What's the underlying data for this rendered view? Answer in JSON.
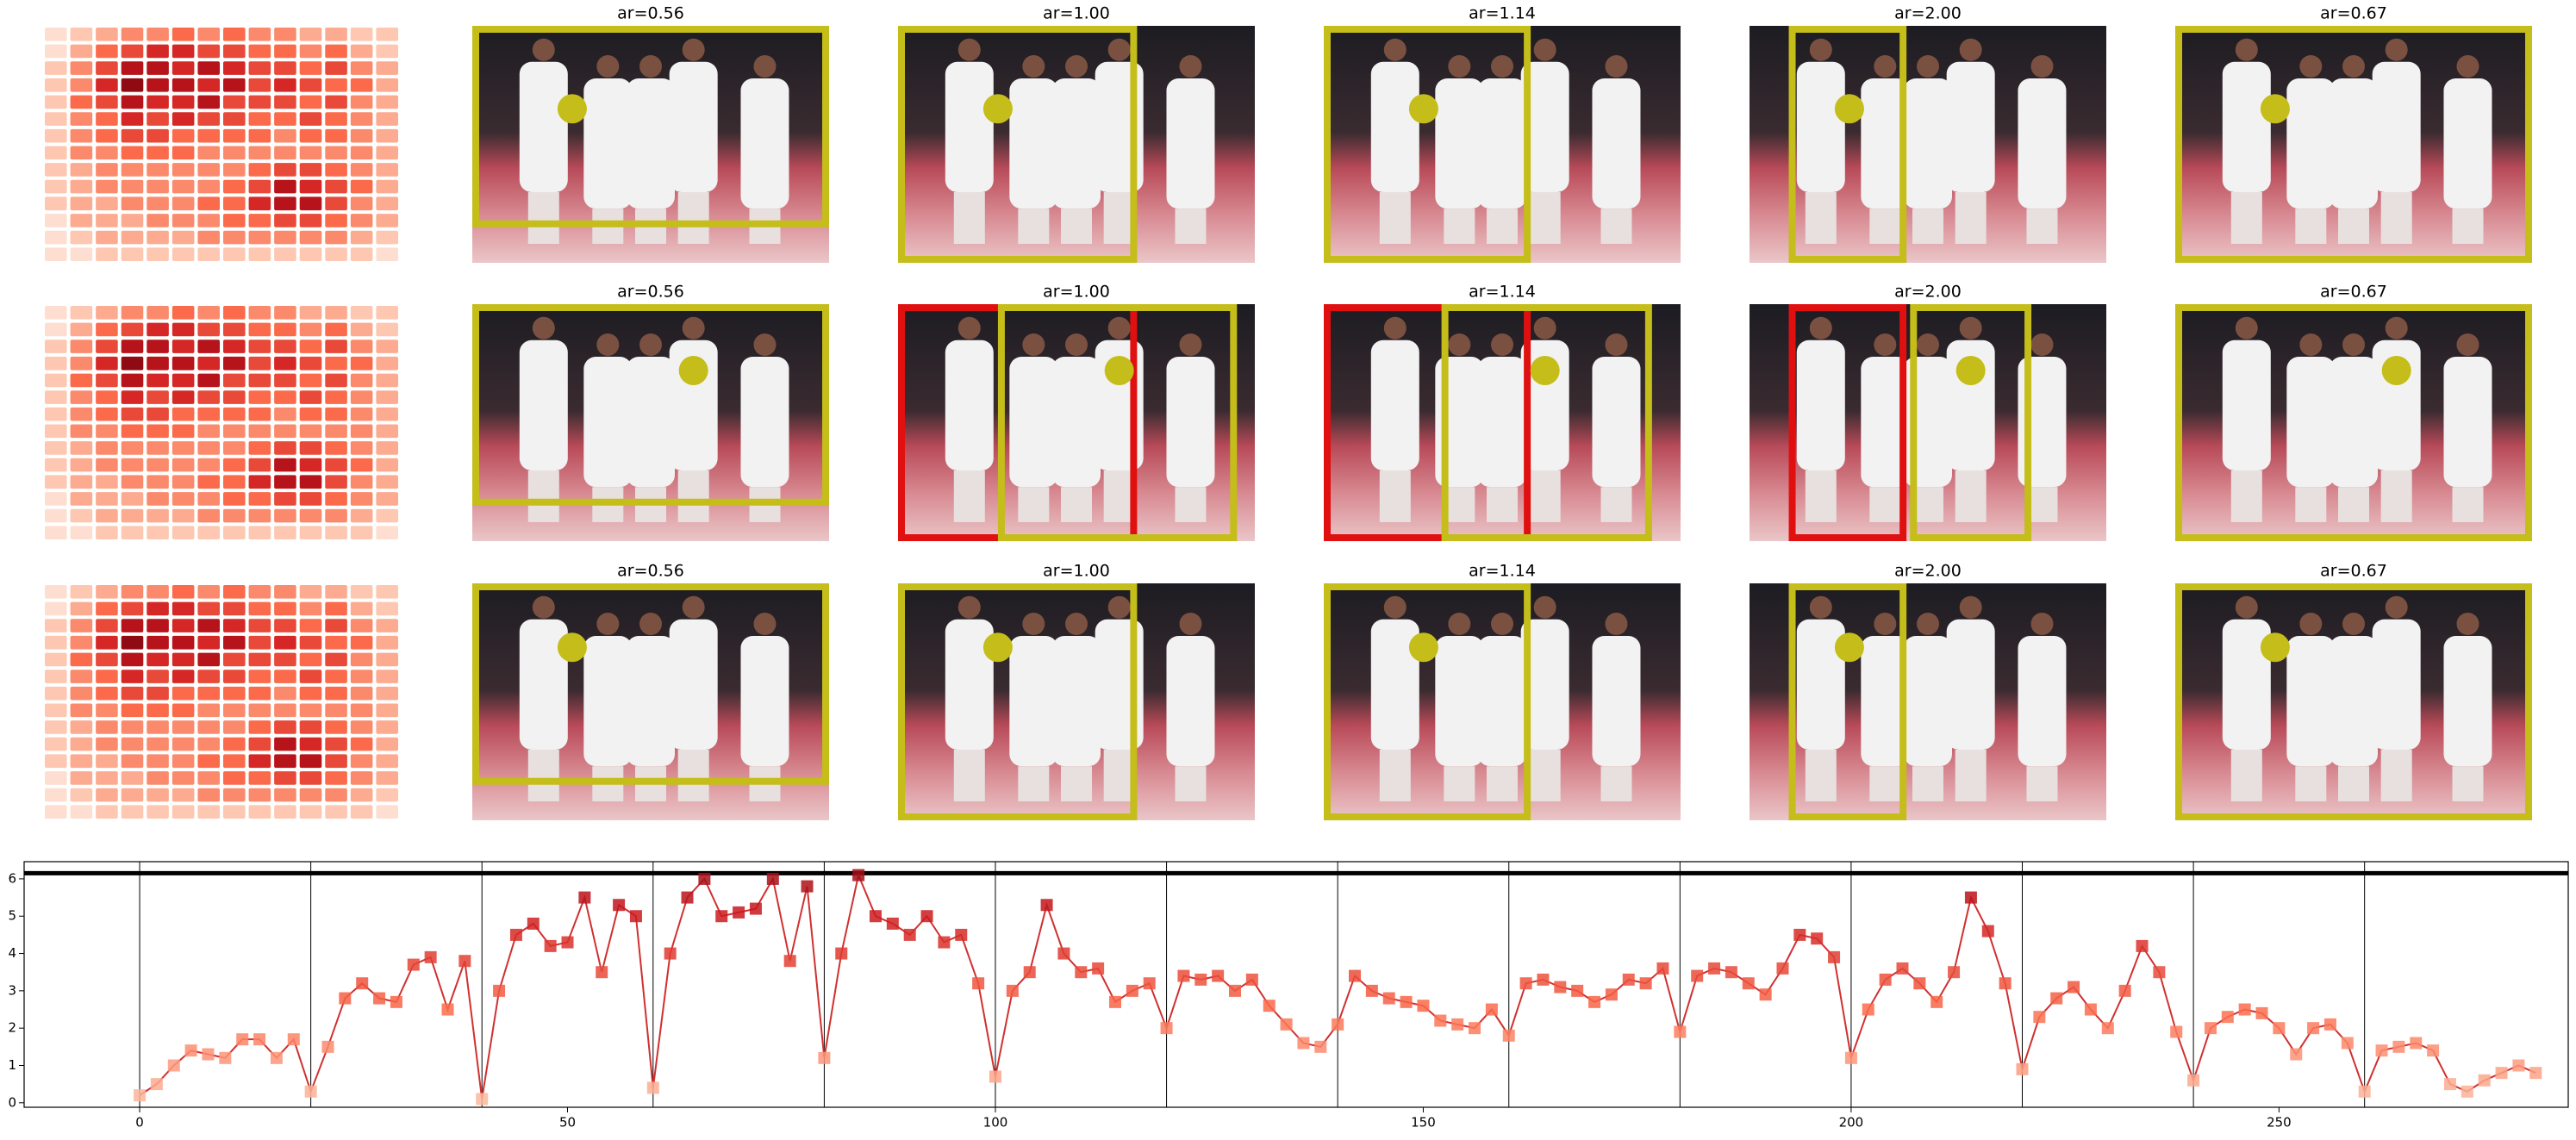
{
  "chart_data": [
    {
      "type": "heatmap",
      "colormap": "Reds",
      "values": [
        [
          0.1,
          0.2,
          0.3,
          0.4,
          0.4,
          0.5,
          0.4,
          0.5,
          0.4,
          0.4,
          0.3,
          0.3,
          0.2,
          0.2
        ],
        [
          0.1,
          0.3,
          0.5,
          0.6,
          0.7,
          0.7,
          0.6,
          0.6,
          0.5,
          0.5,
          0.4,
          0.5,
          0.3,
          0.2
        ],
        [
          0.2,
          0.4,
          0.6,
          0.8,
          0.8,
          0.7,
          0.8,
          0.7,
          0.6,
          0.6,
          0.5,
          0.6,
          0.4,
          0.3
        ],
        [
          0.2,
          0.4,
          0.7,
          0.9,
          0.8,
          0.8,
          0.7,
          0.8,
          0.6,
          0.7,
          0.6,
          0.5,
          0.5,
          0.3
        ],
        [
          0.2,
          0.5,
          0.6,
          0.8,
          0.7,
          0.7,
          0.8,
          0.6,
          0.6,
          0.6,
          0.5,
          0.6,
          0.4,
          0.3
        ],
        [
          0.2,
          0.4,
          0.5,
          0.7,
          0.6,
          0.7,
          0.6,
          0.6,
          0.5,
          0.5,
          0.6,
          0.5,
          0.4,
          0.3
        ],
        [
          0.2,
          0.4,
          0.5,
          0.6,
          0.6,
          0.5,
          0.5,
          0.5,
          0.5,
          0.4,
          0.5,
          0.5,
          0.4,
          0.3
        ],
        [
          0.2,
          0.4,
          0.4,
          0.5,
          0.5,
          0.5,
          0.4,
          0.4,
          0.4,
          0.4,
          0.4,
          0.4,
          0.4,
          0.3
        ],
        [
          0.2,
          0.3,
          0.4,
          0.4,
          0.4,
          0.4,
          0.4,
          0.4,
          0.5,
          0.6,
          0.6,
          0.5,
          0.4,
          0.3
        ],
        [
          0.2,
          0.3,
          0.4,
          0.4,
          0.4,
          0.4,
          0.4,
          0.5,
          0.6,
          0.8,
          0.7,
          0.6,
          0.5,
          0.3
        ],
        [
          0.2,
          0.3,
          0.3,
          0.4,
          0.4,
          0.4,
          0.5,
          0.5,
          0.7,
          0.8,
          0.8,
          0.6,
          0.4,
          0.3
        ],
        [
          0.1,
          0.3,
          0.3,
          0.3,
          0.4,
          0.4,
          0.4,
          0.5,
          0.5,
          0.6,
          0.6,
          0.5,
          0.4,
          0.3
        ],
        [
          0.1,
          0.2,
          0.3,
          0.3,
          0.3,
          0.3,
          0.4,
          0.4,
          0.4,
          0.4,
          0.4,
          0.4,
          0.3,
          0.2
        ],
        [
          0.1,
          0.1,
          0.2,
          0.2,
          0.2,
          0.2,
          0.2,
          0.2,
          0.2,
          0.2,
          0.2,
          0.2,
          0.2,
          0.1
        ]
      ]
    },
    {
      "type": "image-grid",
      "titles": [
        [
          "ar=0.56",
          "ar=1.00",
          "ar=1.14",
          "ar=2.00",
          "ar=0.67"
        ],
        [
          "ar=0.56",
          "ar=1.00",
          "ar=1.14",
          "ar=2.00",
          "ar=0.67"
        ],
        [
          "ar=0.56",
          "ar=1.00",
          "ar=1.14",
          "ar=2.00",
          "ar=0.67"
        ]
      ]
    },
    {
      "type": "line",
      "color": "#d03030",
      "colormap": "Reds",
      "x": [
        0,
        2,
        4,
        6,
        8,
        10,
        12,
        14,
        16,
        18,
        20,
        22,
        24,
        26,
        28,
        30,
        32,
        34,
        36,
        38,
        40,
        42,
        44,
        46,
        48,
        50,
        52,
        54,
        56,
        58,
        60,
        62,
        64,
        66,
        68,
        70,
        72,
        74,
        76,
        78,
        80,
        82,
        84,
        86,
        88,
        90,
        92,
        94,
        96,
        98,
        100,
        102,
        104,
        106,
        108,
        110,
        112,
        114,
        116,
        118,
        120,
        122,
        124,
        126,
        128,
        130,
        132,
        134,
        136,
        138,
        140,
        142,
        144,
        146,
        148,
        150,
        152,
        154,
        156,
        158,
        160,
        162,
        164,
        166,
        168,
        170,
        172,
        174,
        176,
        178,
        180,
        182,
        184,
        186,
        188,
        190,
        192,
        194,
        196,
        198,
        200,
        202,
        204,
        206,
        208,
        210,
        212,
        214,
        216,
        218,
        220,
        222,
        224,
        226,
        228,
        230,
        232,
        234,
        236,
        238,
        240,
        242,
        244,
        246,
        248,
        250,
        252,
        254,
        256,
        258,
        260,
        262,
        264,
        266,
        268,
        270,
        272,
        274,
        276,
        278,
        280
      ],
      "values": [
        0.2,
        0.5,
        1.0,
        1.4,
        1.3,
        1.2,
        1.7,
        1.7,
        1.2,
        1.7,
        0.3,
        1.5,
        2.8,
        3.2,
        2.8,
        2.7,
        3.7,
        3.9,
        2.5,
        3.8,
        0.1,
        3.0,
        4.5,
        4.8,
        4.2,
        4.3,
        5.5,
        3.5,
        5.3,
        5.0,
        0.4,
        4.0,
        5.5,
        6.0,
        5.0,
        5.1,
        5.2,
        6.0,
        3.8,
        5.8,
        1.2,
        4.0,
        6.1,
        5.0,
        4.8,
        4.5,
        5.0,
        4.3,
        4.5,
        3.2,
        0.7,
        3.0,
        3.5,
        5.3,
        4.0,
        3.5,
        3.6,
        2.7,
        3.0,
        3.2,
        2.0,
        3.4,
        3.3,
        3.4,
        3.0,
        3.3,
        2.6,
        2.1,
        1.6,
        1.5,
        2.1,
        3.4,
        3.0,
        2.8,
        2.7,
        2.6,
        2.2,
        2.1,
        2.0,
        2.5,
        1.8,
        3.2,
        3.3,
        3.1,
        3.0,
        2.7,
        2.9,
        3.3,
        3.2,
        3.6,
        1.9,
        3.4,
        3.6,
        3.5,
        3.2,
        2.9,
        3.6,
        4.5,
        4.4,
        3.9,
        1.2,
        2.5,
        3.3,
        3.6,
        3.2,
        2.7,
        3.5,
        5.5,
        4.6,
        3.2,
        0.9,
        2.3,
        2.8,
        3.1,
        2.5,
        2.0,
        3.0,
        4.2,
        3.5,
        1.9,
        0.6,
        2.0,
        2.3,
        2.5,
        2.4,
        2.0,
        1.3,
        2.0,
        2.1,
        1.6,
        0.3,
        1.4,
        1.5,
        1.6,
        1.4,
        0.5,
        0.3,
        0.6,
        0.8,
        1.0,
        0.8
      ],
      "vlines": [
        0,
        20,
        40,
        60,
        80,
        100,
        120,
        140,
        160,
        180,
        200,
        220,
        240,
        260
      ],
      "hline": 6.15,
      "xlim": [
        -13.5,
        283.8
      ],
      "ylim": [
        -0.12,
        6.46
      ],
      "xticks": [
        0,
        50,
        100,
        150,
        200,
        250
      ],
      "yticks": [
        0,
        1,
        2,
        3,
        4,
        5,
        6
      ]
    }
  ]
}
